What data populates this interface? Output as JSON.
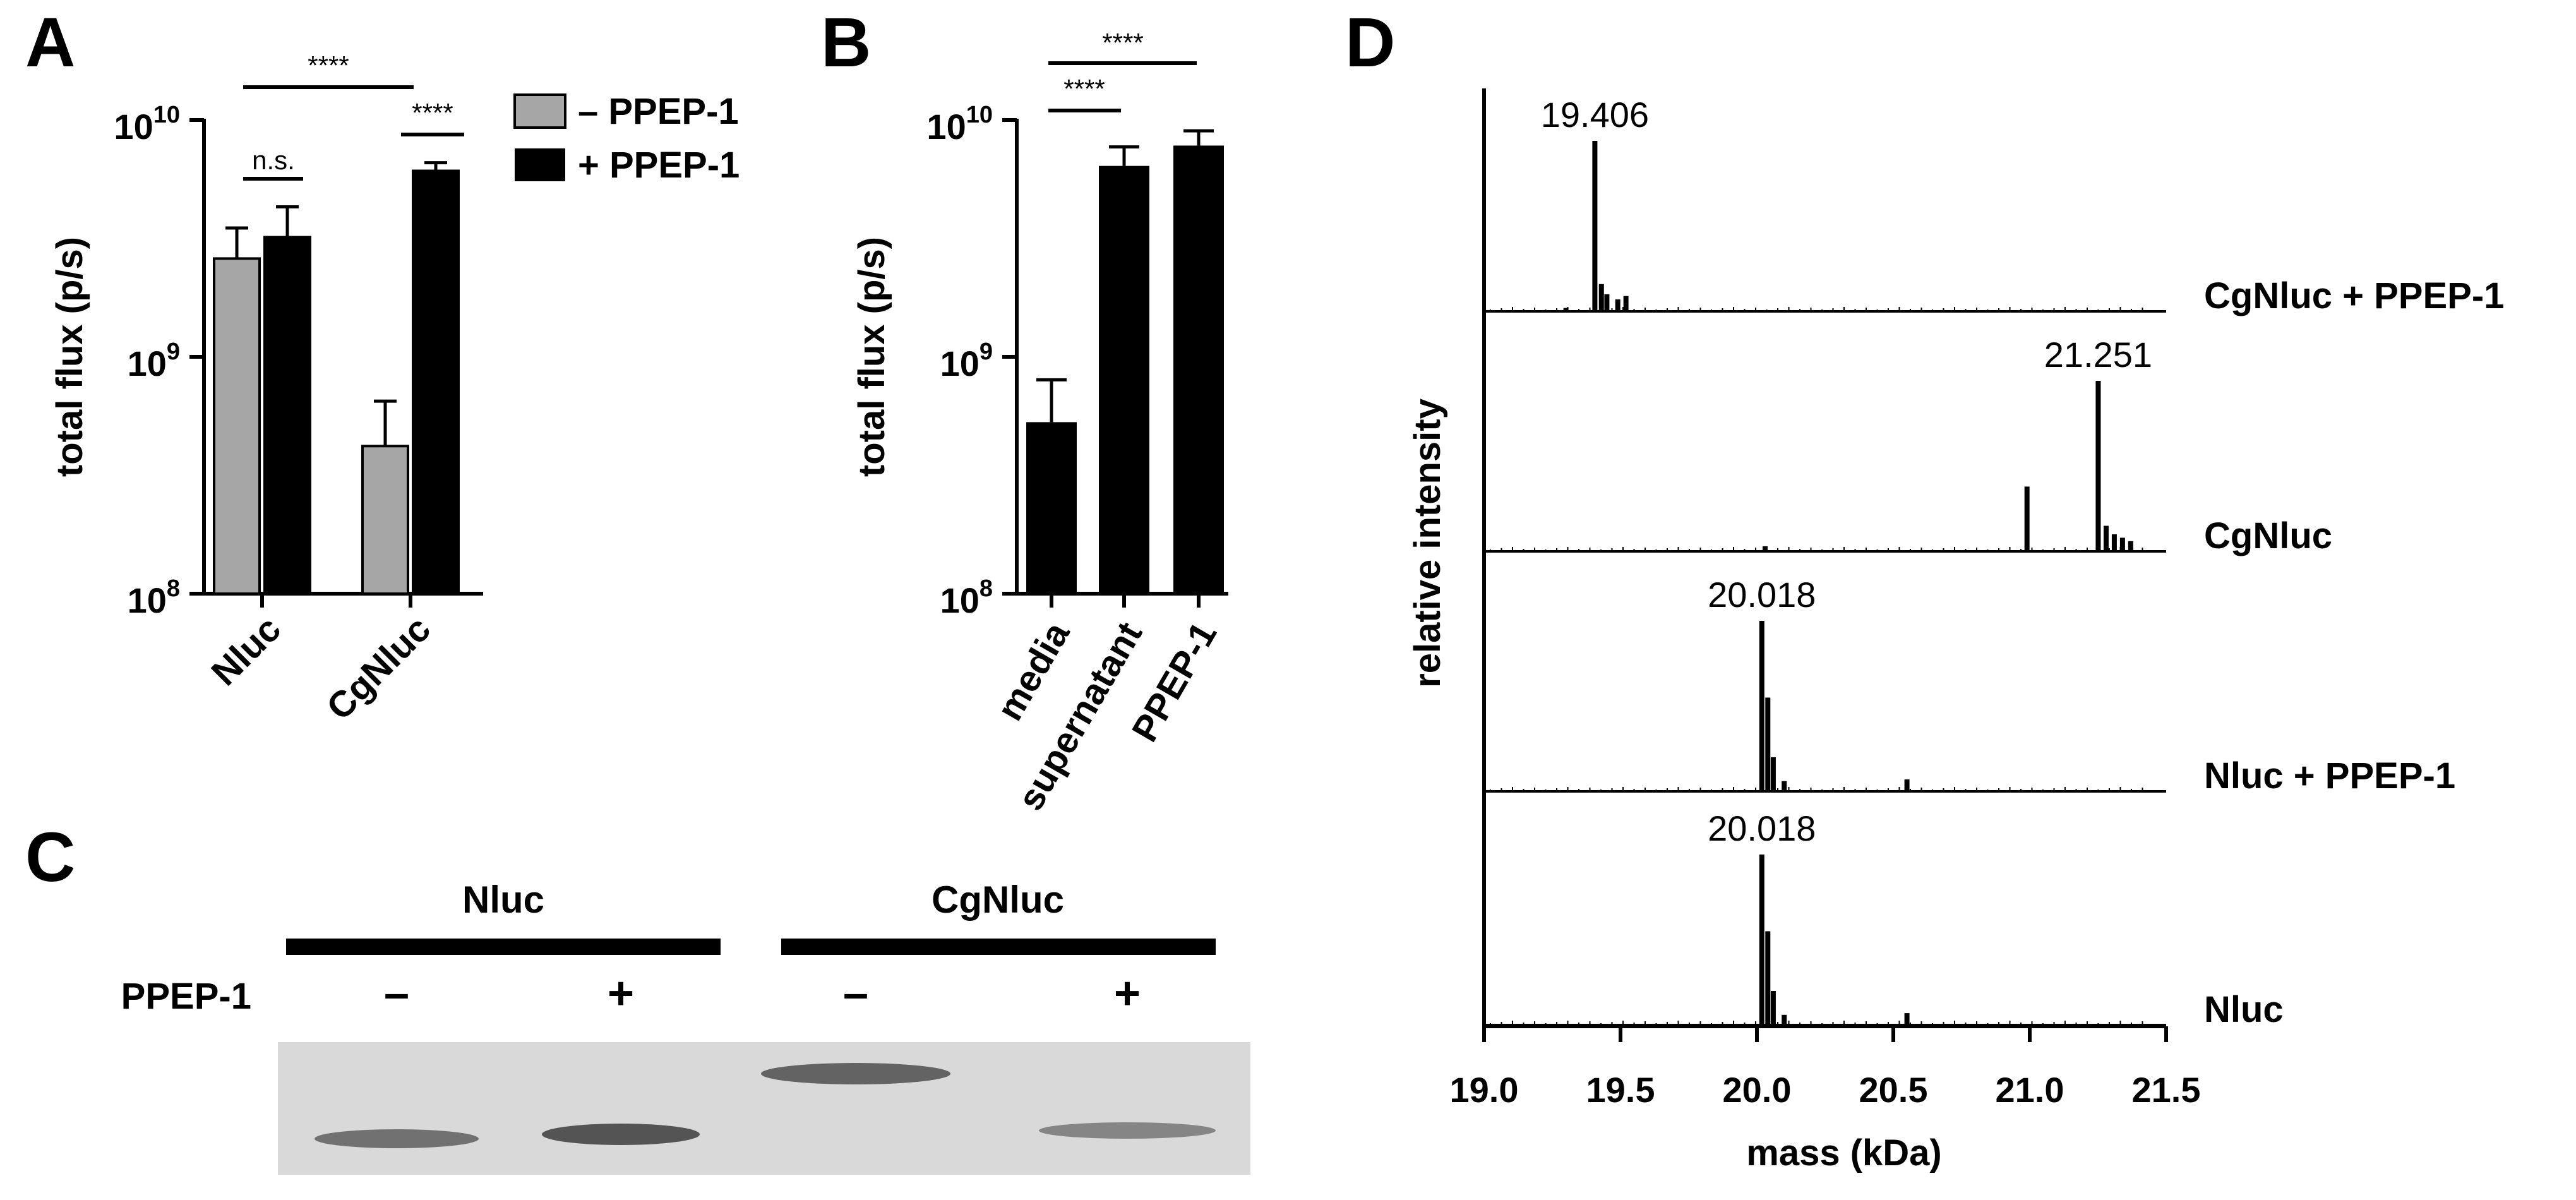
{
  "panel_labels": {
    "a": "A",
    "b": "B",
    "c": "C",
    "d": "D"
  },
  "colors": {
    "minus": "#a6a6a6",
    "plus": "#000000",
    "gel_bg": "#d9d9d9",
    "gel_band": "#4d4d4d"
  },
  "chart_data": [
    {
      "panel": "A",
      "type": "bar",
      "title": "",
      "xlabel": "",
      "ylabel": "total flux (p/s)",
      "yscale": "log",
      "ylim": [
        100000000,
        10000000000
      ],
      "yticks": [
        {
          "base": "10",
          "exp": "8"
        },
        {
          "base": "10",
          "exp": "9"
        },
        {
          "base": "10",
          "exp": "10"
        }
      ],
      "categories": [
        "Nluc",
        "CgNluc"
      ],
      "series": [
        {
          "name": "– PPEP-1",
          "color": "#a6a6a6",
          "values": [
            2600000000,
            420000000
          ],
          "errors": [
            900000000,
            230000000
          ]
        },
        {
          "name": "+ PPEP-1",
          "color": "#000000",
          "values": [
            3200000000,
            6100000000
          ],
          "errors": [
            1100000000,
            500000000
          ]
        }
      ],
      "legend_position": "top-right",
      "annotations": [
        "n.s.",
        "****",
        "****"
      ]
    },
    {
      "panel": "B",
      "type": "bar",
      "title": "",
      "xlabel": "",
      "ylabel": "total flux (p/s)",
      "yscale": "log",
      "ylim": [
        100000000,
        10000000000
      ],
      "yticks": [
        {
          "base": "10",
          "exp": "8"
        },
        {
          "base": "10",
          "exp": "9"
        },
        {
          "base": "10",
          "exp": "10"
        }
      ],
      "categories": [
        "media",
        "supernatant",
        "PPEP-1"
      ],
      "values": [
        530000000,
        6400000000,
        7800000000
      ],
      "errors": [
        270000000,
        1300000000,
        1200000000
      ],
      "annotations": [
        "****",
        "****"
      ]
    },
    {
      "panel": "D",
      "type": "line",
      "title": "",
      "xlabel": "mass (kDa)",
      "ylabel": "relative intensity",
      "xlim": [
        19.0,
        21.5
      ],
      "xticks": [
        "19.0",
        "19.5",
        "20.0",
        "20.5",
        "21.0",
        "21.5"
      ],
      "series": [
        {
          "name": "CgNluc + PPEP-1",
          "peak_label": "19.406",
          "peaks": [
            {
              "x": 19.406,
              "y": 1.0
            },
            {
              "x": 19.43,
              "y": 0.16
            },
            {
              "x": 19.45,
              "y": 0.1
            },
            {
              "x": 19.49,
              "y": 0.07
            },
            {
              "x": 19.52,
              "y": 0.09
            },
            {
              "x": 19.3,
              "y": 0.02
            }
          ]
        },
        {
          "name": "CgNluc",
          "peak_label": "21.251",
          "peaks": [
            {
              "x": 20.99,
              "y": 0.38
            },
            {
              "x": 21.251,
              "y": 1.0
            },
            {
              "x": 21.28,
              "y": 0.15
            },
            {
              "x": 21.31,
              "y": 0.1
            },
            {
              "x": 21.34,
              "y": 0.08
            },
            {
              "x": 21.37,
              "y": 0.06
            },
            {
              "x": 20.03,
              "y": 0.03
            }
          ]
        },
        {
          "name": "Nluc + PPEP-1",
          "peak_label": "20.018",
          "peaks": [
            {
              "x": 20.018,
              "y": 1.0
            },
            {
              "x": 20.04,
              "y": 0.55
            },
            {
              "x": 20.06,
              "y": 0.2
            },
            {
              "x": 20.1,
              "y": 0.06
            },
            {
              "x": 20.55,
              "y": 0.07
            }
          ]
        },
        {
          "name": "Nluc",
          "peak_label": "20.018",
          "peaks": [
            {
              "x": 20.018,
              "y": 1.0
            },
            {
              "x": 20.04,
              "y": 0.55
            },
            {
              "x": 20.06,
              "y": 0.2
            },
            {
              "x": 20.1,
              "y": 0.06
            },
            {
              "x": 20.55,
              "y": 0.07
            }
          ]
        }
      ]
    }
  ],
  "gel": {
    "groups": [
      "Nluc",
      "CgNluc"
    ],
    "row_label": "PPEP-1",
    "lanes": [
      "–",
      "+",
      "–",
      "+"
    ],
    "band_intensity": [
      0.75,
      0.95,
      0.85,
      0.6
    ]
  }
}
